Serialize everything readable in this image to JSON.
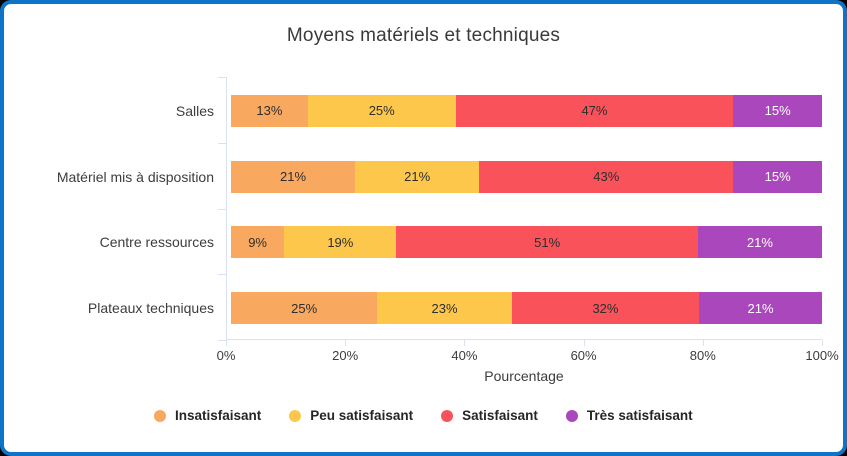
{
  "colors": {
    "card_border": "#0d74c8",
    "card_background": "#ffffff",
    "axis_line": "#d9e1f2",
    "title_text": "#3a3a3a",
    "tick_text": "#3d3d3d",
    "legend_text": "#262626"
  },
  "chart_data": {
    "type": "bar",
    "orientation": "horizontal",
    "stacked": true,
    "title": "Moyens matériels et techniques",
    "xlabel": "Pourcentage",
    "categories": [
      "Salles",
      "Matériel mis à disposition",
      "Centre ressources",
      "Plateaux techniques"
    ],
    "series": [
      {
        "name": "Insatisfaisant",
        "color": "#f9a85f",
        "value_label_color": "#2e2e2e",
        "values": [
          13,
          21,
          9,
          25
        ]
      },
      {
        "name": "Peu satisfaisant",
        "color": "#fdc74b",
        "value_label_color": "#2e2e2e",
        "values": [
          25,
          21,
          19,
          23
        ]
      },
      {
        "name": "Satisfaisant",
        "color": "#f9525a",
        "value_label_color": "#2e2e2e",
        "values": [
          47,
          43,
          51,
          32
        ]
      },
      {
        "name": "Très satisfaisant",
        "color": "#ab47bc",
        "value_label_color": "#ffffff",
        "values": [
          15,
          15,
          21,
          21
        ]
      }
    ],
    "value_suffix": "%",
    "x_ticks": [
      "0%",
      "20%",
      "40%",
      "60%",
      "80%",
      "100%"
    ],
    "xlim": [
      0,
      100
    ],
    "legend_position": "bottom",
    "grid": false
  }
}
